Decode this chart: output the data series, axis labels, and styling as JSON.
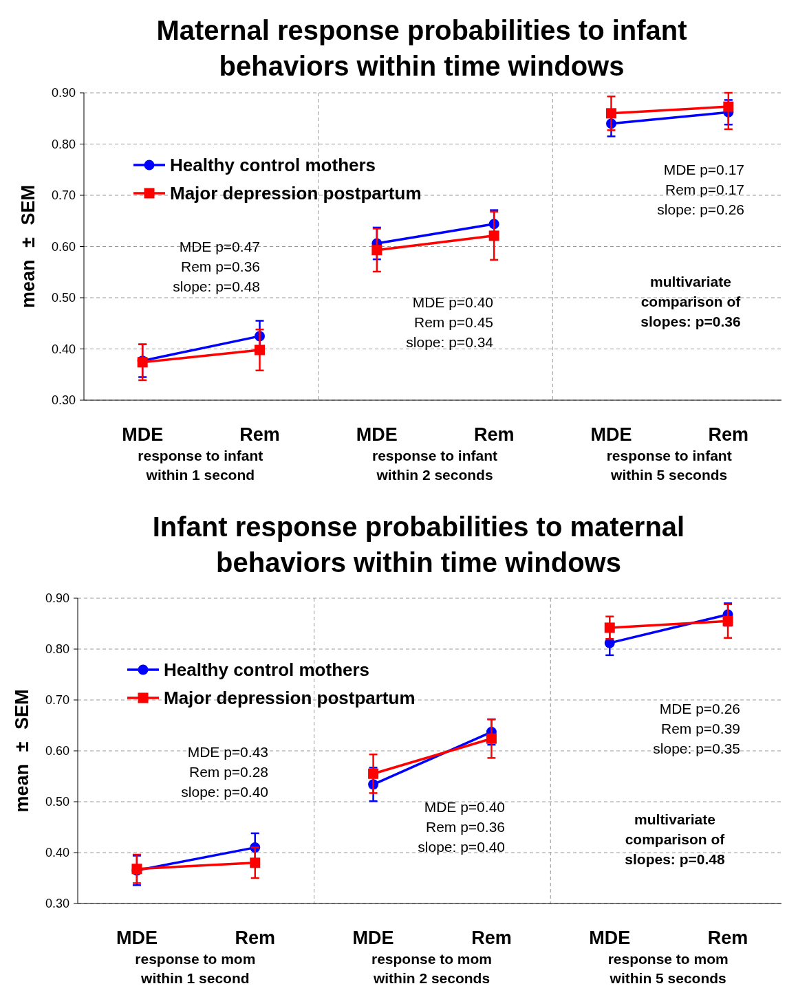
{
  "chart_data": [
    {
      "type": "line",
      "title": "Maternal response probabilities to infant\nbehaviors within time windows",
      "ylabel": "mean ± SEM",
      "categories": [
        "MDE",
        "Rem",
        "MDE",
        "Rem",
        "MDE",
        "Rem"
      ],
      "ylim": [
        0.3,
        0.9
      ],
      "yticks": [
        {
          "value": 0.3,
          "label": "0.30"
        },
        {
          "value": 0.4,
          "label": "0.40"
        },
        {
          "value": 0.5,
          "label": "0.50"
        },
        {
          "value": 0.6,
          "label": "0.60"
        },
        {
          "value": 0.7,
          "label": "0.70"
        },
        {
          "value": 0.8,
          "label": "0.80"
        },
        {
          "value": 0.9,
          "label": "0.90"
        }
      ],
      "grid": true,
      "legend": "top left",
      "line_style": "solid",
      "series": [
        {
          "name": "Healthy control mothers",
          "color": "#0000ff",
          "marker": "circle",
          "values": [
            0.377,
            0.425,
            null,
            null,
            null,
            null
          ],
          "errors": [
            0.032,
            0.03,
            null,
            null,
            null,
            null
          ]
        },
        {
          "color": "#0000ff",
          "marker": "circle",
          "values": [
            null,
            null,
            0.606,
            0.644,
            null,
            null
          ],
          "errors": [
            null,
            null,
            0.031,
            0.027,
            null,
            null
          ]
        },
        {
          "color": "#0000ff",
          "marker": "circle",
          "values": [
            null,
            null,
            null,
            null,
            0.84,
            0.862
          ],
          "errors": [
            null,
            null,
            null,
            null,
            0.025,
            0.024
          ]
        },
        {
          "name": "Major depression postpartum",
          "color": "#ff0000",
          "marker": "square",
          "values": [
            0.374,
            0.398,
            null,
            null,
            null,
            null
          ],
          "errors": [
            0.035,
            0.04,
            null,
            null,
            null,
            null
          ]
        },
        {
          "color": "#ff0000",
          "marker": "square",
          "values": [
            null,
            null,
            0.593,
            0.621,
            null,
            null
          ],
          "errors": [
            null,
            null,
            0.042,
            0.047,
            null,
            null
          ]
        },
        {
          "color": "#ff0000",
          "marker": "square",
          "values": [
            null,
            null,
            null,
            null,
            0.86,
            0.873
          ],
          "errors": [
            null,
            null,
            null,
            null,
            0.033,
            [
              0.829,
              0.9
            ]
          ]
        }
      ],
      "annotations": [
        "response to infant\nwithin 1 second",
        "response to infant\nwithin 2 seconds",
        "response to infant\nwithin 5 seconds",
        "MDE p=0.47\nRem p=0.36\nslope: p=0.48",
        "MDE p=0.40\nRem p=0.45\nslope: p=0.34",
        "MDE p=0.17\nRem p=0.17\nslope: p=0.26",
        "multivariate\ncomparison of\nslopes: p=0.36"
      ]
    },
    {
      "type": "line",
      "title": "Infant response probabilities to maternal\nbehaviors within time windows",
      "ylabel": "mean ± SEM",
      "categories": [
        "MDE",
        "Rem",
        "MDE",
        "Rem",
        "MDE",
        "Rem"
      ],
      "ylim": [
        0.3,
        0.9
      ],
      "yticks": [
        {
          "value": 0.3,
          "label": "0.30"
        },
        {
          "value": 0.4,
          "label": "0.40"
        },
        {
          "value": 0.5,
          "label": "0.50"
        },
        {
          "value": 0.6,
          "label": "0.60"
        },
        {
          "value": 0.7,
          "label": "0.70"
        },
        {
          "value": 0.8,
          "label": "0.80"
        },
        {
          "value": 0.9,
          "label": "0.90"
        }
      ],
      "grid": true,
      "legend": "top left",
      "line_style": "solid",
      "series": [
        {
          "name": "Healthy control mothers",
          "color": "#0000ff",
          "marker": "circle",
          "values": [
            0.365,
            0.41,
            null,
            null,
            null,
            null
          ],
          "errors": [
            0.029,
            0.028,
            null,
            null,
            null,
            null
          ]
        },
        {
          "color": "#0000ff",
          "marker": "circle",
          "values": [
            null,
            null,
            0.534,
            0.637,
            null,
            null
          ],
          "errors": [
            null,
            null,
            0.033,
            0.025,
            null,
            null
          ]
        },
        {
          "color": "#0000ff",
          "marker": "circle",
          "values": [
            null,
            null,
            null,
            null,
            0.812,
            0.868
          ],
          "errors": [
            null,
            null,
            null,
            null,
            0.024,
            0.022
          ]
        },
        {
          "name": "Major depression postpartum",
          "color": "#ff0000",
          "marker": "square",
          "values": [
            0.368,
            0.38,
            null,
            null,
            null,
            null
          ],
          "errors": [
            0.028,
            0.03,
            null,
            null,
            null,
            null
          ]
        },
        {
          "color": "#ff0000",
          "marker": "square",
          "values": [
            null,
            null,
            0.555,
            0.624,
            null,
            null
          ],
          "errors": [
            null,
            null,
            0.038,
            0.038,
            null,
            null
          ]
        },
        {
          "color": "#ff0000",
          "marker": "square",
          "values": [
            null,
            null,
            null,
            null,
            0.842,
            0.855
          ],
          "errors": [
            null,
            null,
            null,
            null,
            0.022,
            0.033
          ]
        }
      ],
      "annotations": [
        "response to mom\nwithin 1 second",
        "response to mom\nwithin 2 seconds",
        "response to mom\nwithin 5 seconds",
        "MDE p=0.43\nRem p=0.28\nslope: p=0.40",
        "MDE p=0.40\nRem p=0.36\nslope: p=0.40",
        "MDE p=0.26\nRem p=0.39\nslope: p=0.35",
        "multivariate\ncomparison of\nslopes: p=0.48"
      ]
    }
  ]
}
